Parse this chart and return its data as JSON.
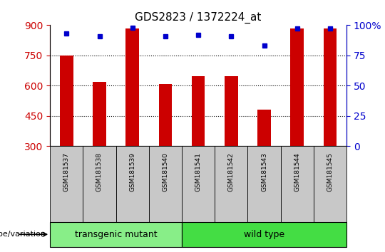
{
  "title": "GDS2823 / 1372224_at",
  "samples": [
    "GSM181537",
    "GSM181538",
    "GSM181539",
    "GSM181540",
    "GSM181541",
    "GSM181542",
    "GSM181543",
    "GSM181544",
    "GSM181545"
  ],
  "counts": [
    750,
    620,
    885,
    608,
    648,
    648,
    480,
    882,
    882
  ],
  "percentiles": [
    93,
    91,
    98,
    91,
    92,
    91,
    83,
    97,
    97
  ],
  "ylim_left": [
    300,
    900
  ],
  "ylim_right": [
    0,
    100
  ],
  "yticks_left": [
    300,
    450,
    600,
    750,
    900
  ],
  "yticks_right": [
    0,
    25,
    50,
    75,
    100
  ],
  "bar_color": "#CC0000",
  "dot_color": "#0000CC",
  "bar_bottom": 300,
  "group1_label": "transgenic mutant",
  "group2_label": "wild type",
  "group1_indices": [
    0,
    1,
    2,
    3
  ],
  "group2_indices": [
    4,
    5,
    6,
    7,
    8
  ],
  "group1_color": "#88EE88",
  "group2_color": "#44DD44",
  "ylabel_left_color": "#CC0000",
  "ylabel_right_color": "#0000CC",
  "bg_color": "#FFFFFF",
  "tick_area_color": "#C8C8C8",
  "legend_count_color": "#CC0000",
  "legend_pct_color": "#0000CC",
  "grid_lines": [
    450,
    600,
    750
  ],
  "bar_width": 0.4
}
